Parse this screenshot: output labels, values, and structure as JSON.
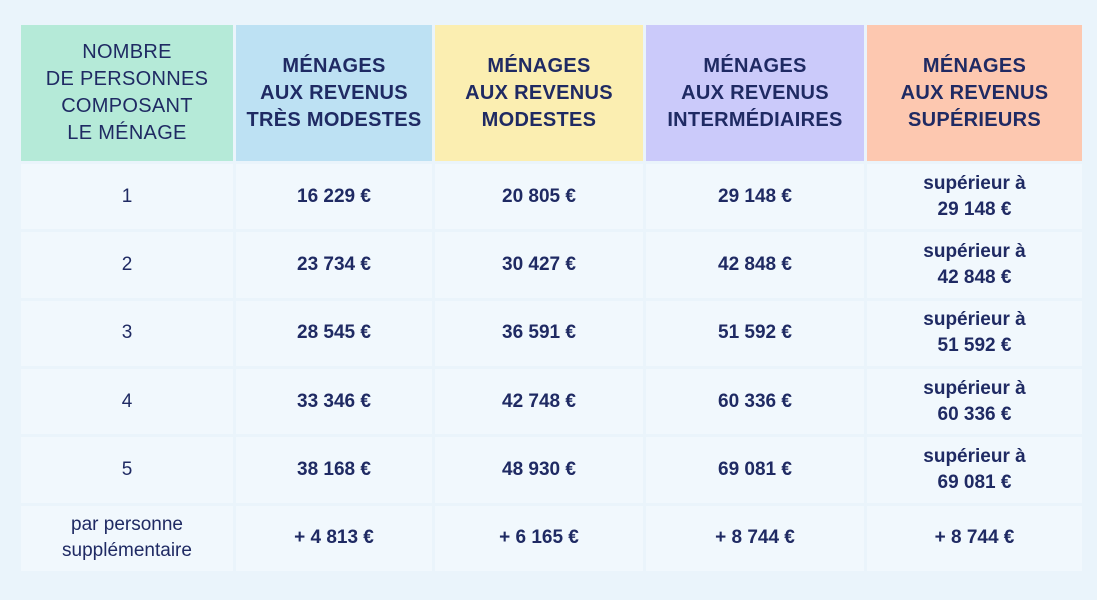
{
  "colors": {
    "header_persons": "#b5ead8",
    "header_tres_modestes": "#bde1f3",
    "header_modestes": "#fbeeb1",
    "header_intermediaires": "#cbcafa",
    "header_superieurs": "#fdc8b0",
    "text": "#1f2a63",
    "cell_bg": "#f1f8fd",
    "page_bg": "#eaf4fb"
  },
  "table": {
    "headers": [
      {
        "lines": [
          "Nombre",
          "de personnes",
          "composant",
          "le ménage"
        ]
      },
      {
        "lines": [
          "Ménages",
          "aux revenus",
          "très modestes"
        ]
      },
      {
        "lines": [
          "Ménages",
          "aux revenus",
          "modestes"
        ]
      },
      {
        "lines": [
          "Ménages",
          "aux revenus",
          "intermédiaires"
        ]
      },
      {
        "lines": [
          "Ménages",
          "aux revenus",
          "supérieurs"
        ]
      }
    ],
    "rows": [
      {
        "persons": [
          "1"
        ],
        "tres_modestes": "16 229 €",
        "modestes": "20 805 €",
        "intermediaires": "29 148 €",
        "superieurs": [
          "supérieur à",
          "29 148 €"
        ]
      },
      {
        "persons": [
          "2"
        ],
        "tres_modestes": "23 734 €",
        "modestes": "30 427 €",
        "intermediaires": "42 848 €",
        "superieurs": [
          "supérieur à",
          "42 848 €"
        ]
      },
      {
        "persons": [
          "3"
        ],
        "tres_modestes": "28 545 €",
        "modestes": "36 591 €",
        "intermediaires": "51 592 €",
        "superieurs": [
          "supérieur à",
          "51 592 €"
        ]
      },
      {
        "persons": [
          "4"
        ],
        "tres_modestes": "33 346 €",
        "modestes": "42 748 €",
        "intermediaires": "60 336 €",
        "superieurs": [
          "supérieur à",
          "60 336 €"
        ]
      },
      {
        "persons": [
          "5"
        ],
        "tres_modestes": "38 168 €",
        "modestes": "48 930 €",
        "intermediaires": "69 081 €",
        "superieurs": [
          "supérieur à",
          "69 081 €"
        ]
      },
      {
        "persons": [
          "par personne",
          "supplémentaire"
        ],
        "tres_modestes": "+ 4 813 €",
        "modestes": "+ 6 165 €",
        "intermediaires": "+ 8 744 €",
        "superieurs": [
          "+ 8 744 €"
        ]
      }
    ]
  }
}
